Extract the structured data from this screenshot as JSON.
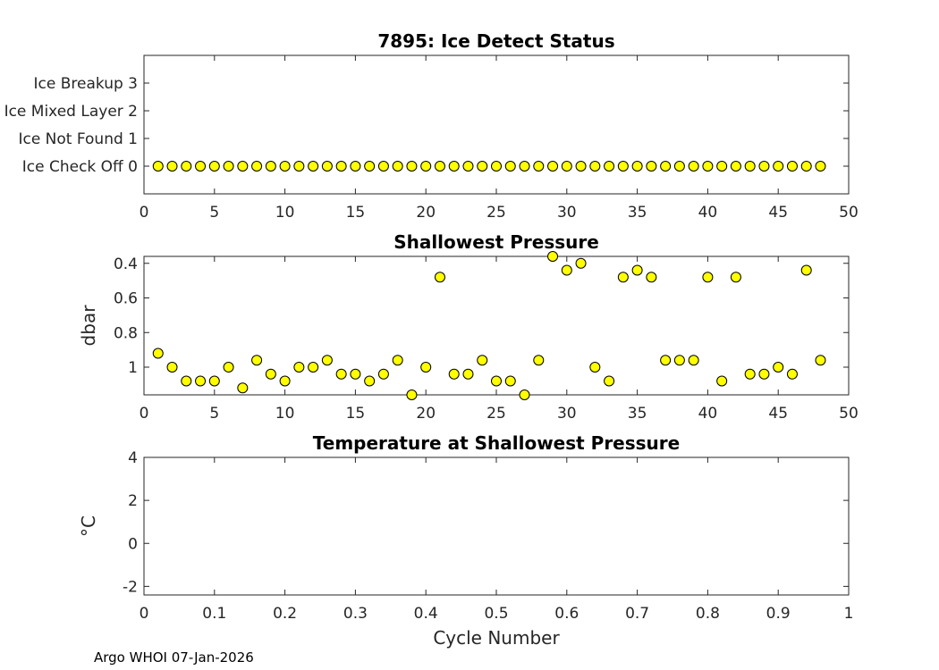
{
  "footer": "Argo WHOI 07-Jan-2026",
  "marker_color": "#ffff00",
  "chart_data": [
    {
      "type": "scatter",
      "title": "7895: Ice Detect Status",
      "xlabel": "",
      "ylabel": "",
      "xlim": [
        0,
        50
      ],
      "ylim": [
        -1,
        4
      ],
      "reverse_y": false,
      "xticks": [
        0,
        5,
        10,
        15,
        20,
        25,
        30,
        35,
        40,
        45,
        50
      ],
      "xtick_labels": [
        "0",
        "5",
        "10",
        "15",
        "20",
        "25",
        "30",
        "35",
        "40",
        "45",
        "50"
      ],
      "yticks": [
        0,
        1,
        2,
        3
      ],
      "ytick_labels": [
        "Ice Check Off 0",
        "Ice Not Found 1",
        "Ice Mixed Layer 2",
        "Ice Breakup 3"
      ],
      "x": [
        1,
        2,
        3,
        4,
        5,
        6,
        7,
        8,
        9,
        10,
        11,
        12,
        13,
        14,
        15,
        16,
        17,
        18,
        19,
        20,
        21,
        22,
        23,
        24,
        25,
        26,
        27,
        28,
        29,
        30,
        31,
        32,
        33,
        34,
        35,
        36,
        37,
        38,
        39,
        40,
        41,
        42,
        43,
        44,
        45,
        46,
        47,
        48
      ],
      "y": [
        0,
        0,
        0,
        0,
        0,
        0,
        0,
        0,
        0,
        0,
        0,
        0,
        0,
        0,
        0,
        0,
        0,
        0,
        0,
        0,
        0,
        0,
        0,
        0,
        0,
        0,
        0,
        0,
        0,
        0,
        0,
        0,
        0,
        0,
        0,
        0,
        0,
        0,
        0,
        0,
        0,
        0,
        0,
        0,
        0,
        0,
        0,
        0
      ]
    },
    {
      "type": "scatter",
      "title": "Shallowest Pressure",
      "xlabel": "",
      "ylabel": "dbar",
      "xlim": [
        0,
        50
      ],
      "ylim": [
        0.36,
        1.16
      ],
      "reverse_y": true,
      "xticks": [
        0,
        5,
        10,
        15,
        20,
        25,
        30,
        35,
        40,
        45,
        50
      ],
      "xtick_labels": [
        "0",
        "5",
        "10",
        "15",
        "20",
        "25",
        "30",
        "35",
        "40",
        "45",
        "50"
      ],
      "yticks": [
        0.4,
        0.6,
        0.8,
        1.0
      ],
      "ytick_labels": [
        "0.4",
        "0.6",
        "0.8",
        "1"
      ],
      "x": [
        1,
        2,
        3,
        4,
        5,
        6,
        7,
        8,
        9,
        10,
        11,
        12,
        13,
        14,
        15,
        16,
        17,
        18,
        19,
        20,
        21,
        22,
        23,
        24,
        25,
        26,
        27,
        28,
        29,
        30,
        31,
        32,
        33,
        34,
        35,
        36,
        37,
        38,
        39,
        40,
        41,
        42,
        43,
        44,
        45,
        46,
        47,
        48
      ],
      "y": [
        0.92,
        1.0,
        1.08,
        1.08,
        1.08,
        1.0,
        1.12,
        0.96,
        1.04,
        1.08,
        1.0,
        1.0,
        0.96,
        1.04,
        1.04,
        1.08,
        1.04,
        0.96,
        1.16,
        1.0,
        0.48,
        1.04,
        1.04,
        0.96,
        1.08,
        1.08,
        1.16,
        0.96,
        0.36,
        0.44,
        0.4,
        1.0,
        1.08,
        0.48,
        0.44,
        0.48,
        0.96,
        0.96,
        0.96,
        0.48,
        1.08,
        0.48,
        1.04,
        1.04,
        1.0,
        1.04,
        0.44,
        0.96
      ]
    },
    {
      "type": "scatter",
      "title": "Temperature at Shallowest Pressure",
      "xlabel": "Cycle Number",
      "ylabel": "°C",
      "xlim": [
        0,
        1
      ],
      "ylim": [
        -2.4,
        4
      ],
      "reverse_y": false,
      "xticks": [
        0,
        0.1,
        0.2,
        0.3,
        0.4,
        0.5,
        0.6,
        0.7,
        0.8,
        0.9,
        1
      ],
      "xtick_labels": [
        "0",
        "0.1",
        "0.2",
        "0.3",
        "0.4",
        "0.5",
        "0.6",
        "0.7",
        "0.8",
        "0.9",
        "1"
      ],
      "yticks": [
        -2,
        0,
        2,
        4
      ],
      "ytick_labels": [
        "-2",
        "0",
        "2",
        "4"
      ],
      "x": [],
      "y": []
    }
  ]
}
